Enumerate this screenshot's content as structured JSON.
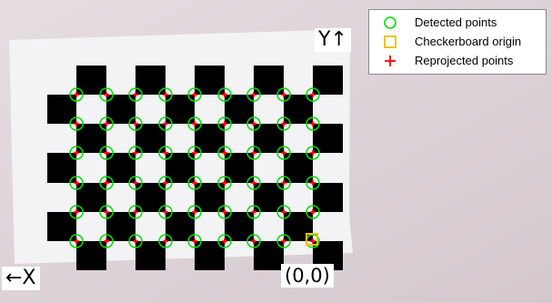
{
  "image": {
    "description_free": true,
    "colors": {
      "wall": "#d9cfd3",
      "board_paper": "#f2f2f4",
      "square": "#000000",
      "detected": "#00e000",
      "reprojected": "#ff0000",
      "origin": "#e8c000"
    },
    "grid": {
      "rows": 6,
      "cols": 9
    }
  },
  "axes": {
    "y_label": "Y↑",
    "x_label": "←X",
    "origin_label": "(0,0)"
  },
  "legend": {
    "items": [
      {
        "label": "Detected points",
        "icon": "green-circle-icon"
      },
      {
        "label": "Checkerboard origin",
        "icon": "yellow-square-icon"
      },
      {
        "label": "Reprojected points",
        "icon": "red-plus-icon"
      }
    ]
  }
}
